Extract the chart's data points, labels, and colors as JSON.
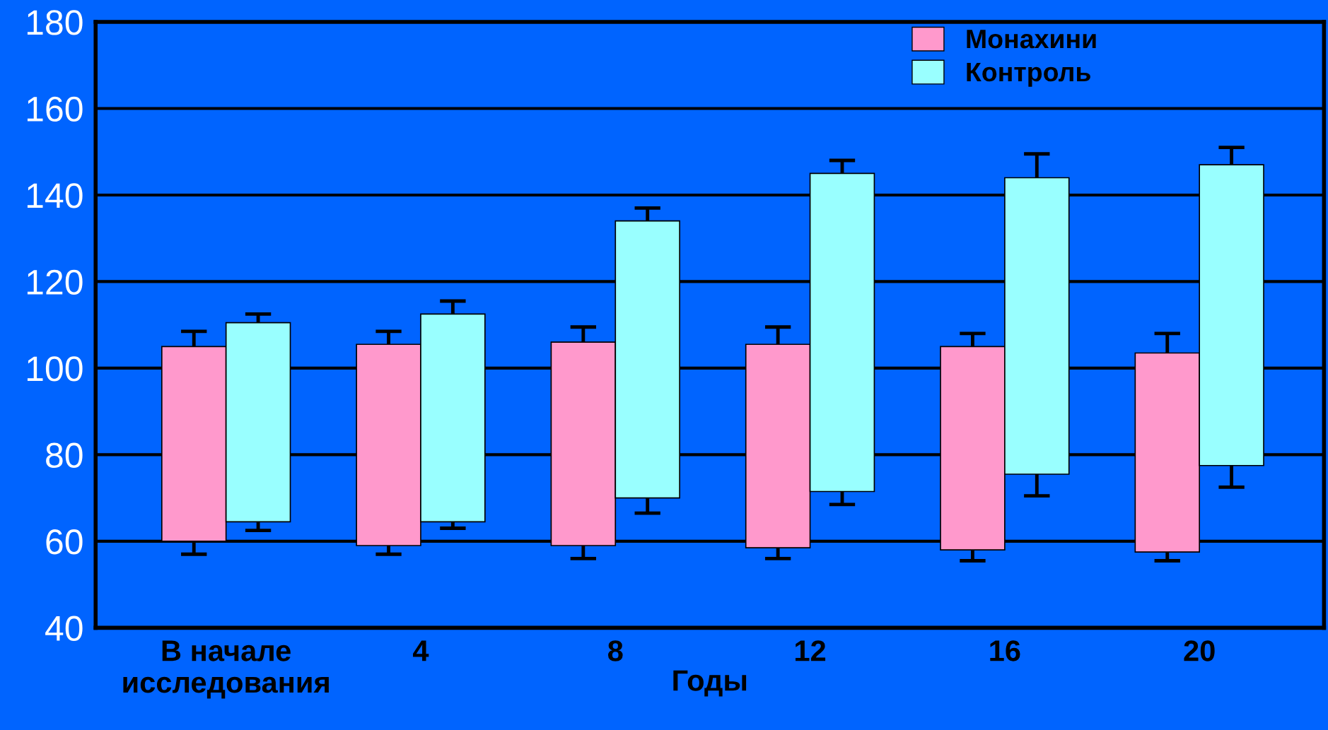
{
  "chart_data": {
    "type": "bar",
    "xlabel": "Годы",
    "categories": [
      "В начале\nисследования",
      "4",
      "8",
      "12",
      "16",
      "20"
    ],
    "series": [
      {
        "name": "Монахини",
        "color": "#ff99cc",
        "base": [
          60,
          59,
          59,
          58.5,
          58,
          57.5
        ],
        "values": [
          45,
          46.5,
          47,
          47,
          47,
          46
        ],
        "errors": [
          [
            57,
            108.5
          ],
          [
            57,
            108.5
          ],
          [
            56,
            109.5
          ],
          [
            56,
            109.5
          ],
          [
            55.5,
            108
          ],
          [
            55.5,
            108
          ]
        ]
      },
      {
        "name": "Контроль",
        "color": "#99ffff",
        "base": [
          64.5,
          64.5,
          70,
          71.5,
          75.5,
          77.5
        ],
        "values": [
          46,
          48,
          64,
          73.5,
          68.5,
          69.5
        ],
        "errors": [
          [
            62.5,
            112.5
          ],
          [
            63,
            115.5
          ],
          [
            66.5,
            137
          ],
          [
            68.5,
            148
          ],
          [
            70.5,
            149.5
          ],
          [
            72.5,
            151
          ]
        ]
      }
    ],
    "ylim": [
      40,
      180
    ],
    "yticks": [
      40,
      60,
      80,
      100,
      120,
      140,
      160,
      180
    ],
    "grid": "y",
    "legend": "top right"
  }
}
